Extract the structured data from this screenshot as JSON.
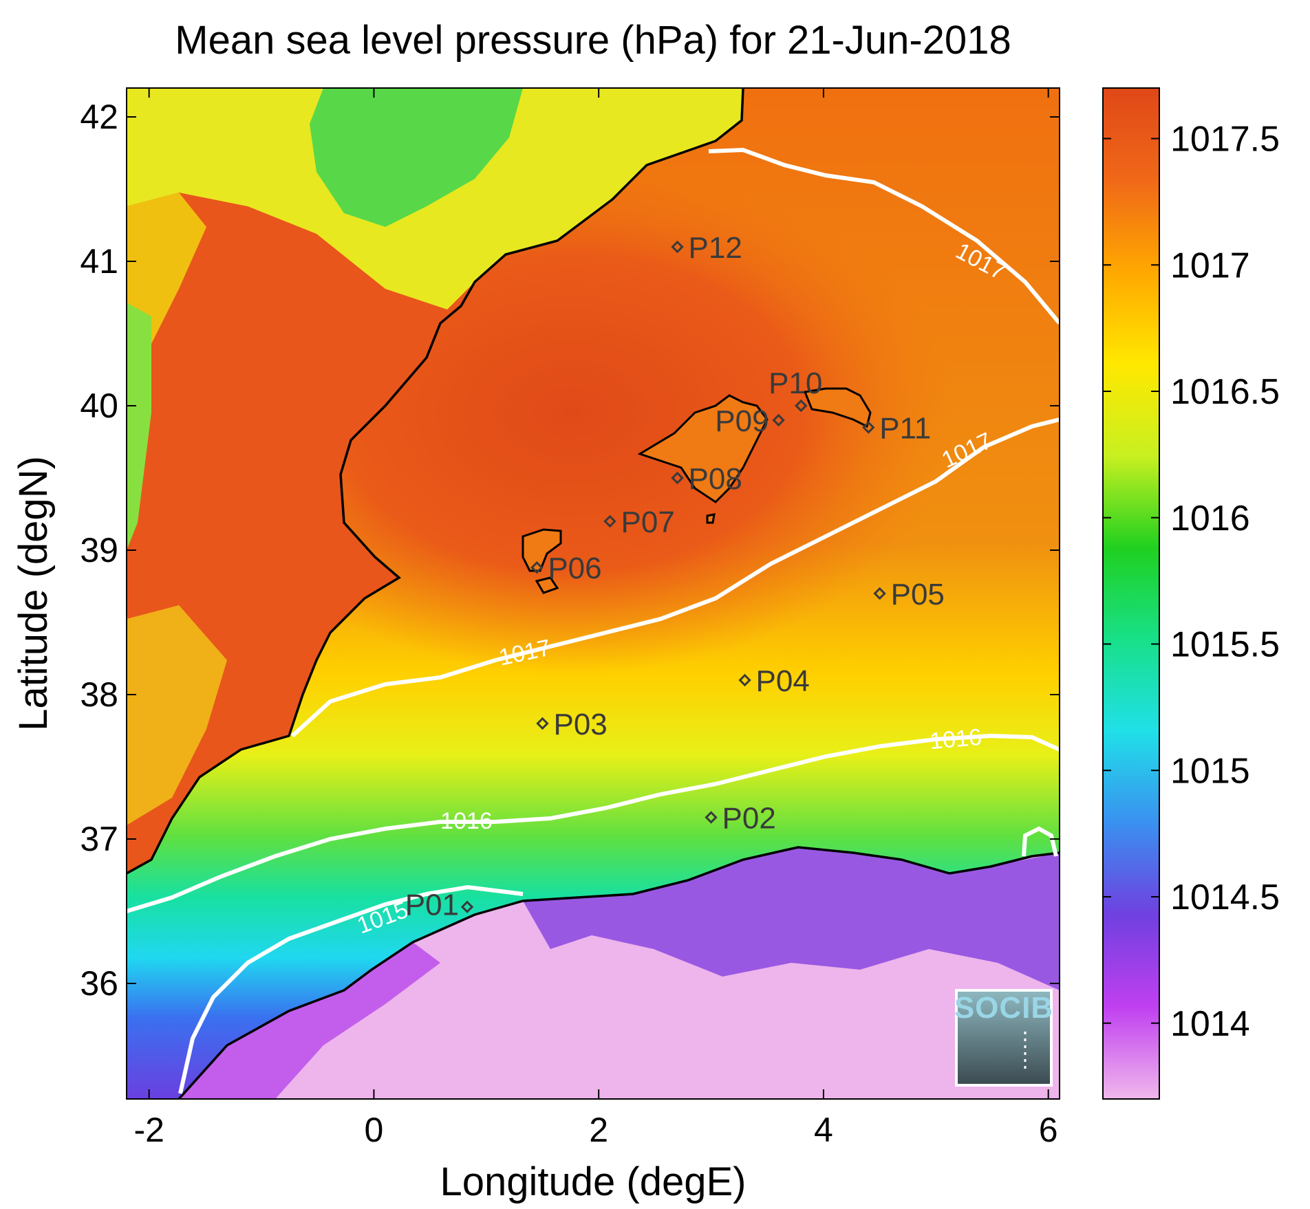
{
  "title": "Mean sea level pressure (hPa) for 21-Jun-2018",
  "xlabel": "Longitude (degE)",
  "ylabel": "Latitude (degN)",
  "xlim": [
    -2.2,
    6.1
  ],
  "ylim": [
    35.2,
    42.2
  ],
  "xticks": [
    -2,
    0,
    2,
    4,
    6
  ],
  "yticks": [
    36,
    37,
    38,
    39,
    40,
    41,
    42
  ],
  "colorbar": {
    "range": [
      1013.7,
      1017.7
    ],
    "ticks": [
      "1014",
      "1014.5",
      "1015",
      "1015.5",
      "1016",
      "1016.5",
      "1017",
      "1017.5"
    ],
    "tick_values": [
      1014,
      1014.5,
      1015,
      1015.5,
      1016,
      1016.5,
      1017,
      1017.5
    ],
    "colormap": [
      "#f0b8ec",
      "#c040f0",
      "#7040e0",
      "#3a90f0",
      "#20e0e8",
      "#18e088",
      "#20d020",
      "#c8f020",
      "#ffe800",
      "#ffa800",
      "#f06818",
      "#e04818"
    ]
  },
  "contours": [
    {
      "label": "1015",
      "value": 1015
    },
    {
      "label": "1016",
      "value": 1016
    },
    {
      "label": "1017",
      "value": 1017
    }
  ],
  "stations": [
    {
      "name": "P01",
      "lon": 0.83,
      "lat": 36.53
    },
    {
      "name": "P02",
      "lon": 3.0,
      "lat": 37.15
    },
    {
      "name": "P03",
      "lon": 1.5,
      "lat": 37.8
    },
    {
      "name": "P04",
      "lon": 3.3,
      "lat": 38.1
    },
    {
      "name": "P05",
      "lon": 4.5,
      "lat": 38.7
    },
    {
      "name": "P06",
      "lon": 1.45,
      "lat": 38.88
    },
    {
      "name": "P07",
      "lon": 2.1,
      "lat": 39.2
    },
    {
      "name": "P08",
      "lon": 2.7,
      "lat": 39.5
    },
    {
      "name": "P09",
      "lon": 3.6,
      "lat": 39.9
    },
    {
      "name": "P10",
      "lon": 3.8,
      "lat": 40.0
    },
    {
      "name": "P11",
      "lon": 4.4,
      "lat": 39.85
    },
    {
      "name": "P12",
      "lon": 2.7,
      "lat": 41.1
    }
  ],
  "logo_text": "SOCIB"
}
